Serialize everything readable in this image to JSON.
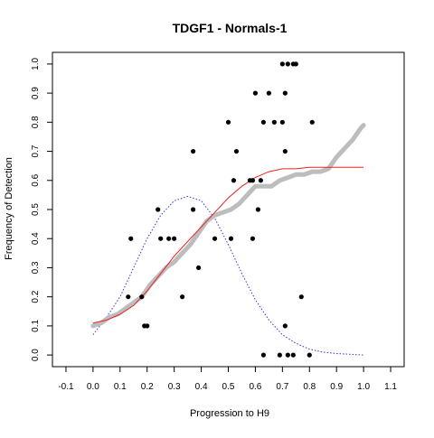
{
  "chart_data": {
    "type": "scatter",
    "title": "TDGF1 - Normals-1",
    "xlabel": "Progression to H9",
    "ylabel": "Frequency of Detection",
    "xlim": [
      -0.15,
      1.15
    ],
    "ylim": [
      -0.04,
      1.04
    ],
    "xticks": [
      -0.1,
      0.0,
      0.1,
      0.2,
      0.3,
      0.4,
      0.5,
      0.6,
      0.7,
      0.8,
      0.9,
      1.0,
      1.1
    ],
    "xtick_labels": [
      "-0.1",
      "0.0",
      "0.1",
      "0.2",
      "0.3",
      "0.4",
      "0.5",
      "0.6",
      "0.7",
      "0.8",
      "0.9",
      "1.0",
      "1.1"
    ],
    "yticks": [
      0.0,
      0.1,
      0.2,
      0.3,
      0.4,
      0.5,
      0.6,
      0.7,
      0.8,
      0.9,
      1.0
    ],
    "ytick_labels": [
      "0.0",
      "0.1",
      "0.2",
      "0.3",
      "0.4",
      "0.5",
      "0.6",
      "0.7",
      "0.8",
      "0.9",
      "1.0"
    ],
    "grid": false,
    "series": [
      {
        "kind": "points",
        "color": "#000000",
        "points": [
          [
            0.14,
            0.4
          ],
          [
            0.13,
            0.2
          ],
          [
            0.18,
            0.2
          ],
          [
            0.19,
            0.1
          ],
          [
            0.2,
            0.1
          ],
          [
            0.24,
            0.5
          ],
          [
            0.25,
            0.4
          ],
          [
            0.28,
            0.4
          ],
          [
            0.3,
            0.4
          ],
          [
            0.33,
            0.2
          ],
          [
            0.37,
            0.7
          ],
          [
            0.37,
            0.5
          ],
          [
            0.39,
            0.3
          ],
          [
            0.45,
            0.4
          ],
          [
            0.5,
            0.8
          ],
          [
            0.51,
            0.4
          ],
          [
            0.52,
            0.6
          ],
          [
            0.53,
            0.7
          ],
          [
            0.58,
            0.6
          ],
          [
            0.59,
            0.6
          ],
          [
            0.59,
            0.4
          ],
          [
            0.6,
            0.9
          ],
          [
            0.61,
            0.5
          ],
          [
            0.62,
            0.6
          ],
          [
            0.63,
            0.8
          ],
          [
            0.63,
            0.0
          ],
          [
            0.65,
            0.9
          ],
          [
            0.67,
            0.8
          ],
          [
            0.69,
            0.0
          ],
          [
            0.7,
            1.0
          ],
          [
            0.7,
            0.8
          ],
          [
            0.71,
            0.9
          ],
          [
            0.71,
            0.7
          ],
          [
            0.71,
            0.1
          ],
          [
            0.72,
            1.0
          ],
          [
            0.72,
            0.0
          ],
          [
            0.74,
            1.0
          ],
          [
            0.74,
            0.0
          ],
          [
            0.75,
            1.0
          ],
          [
            0.77,
            0.2
          ],
          [
            0.8,
            0.0
          ],
          [
            0.81,
            0.8
          ]
        ]
      },
      {
        "kind": "trend",
        "color": "#bdbdbd",
        "points": [
          [
            0.0,
            0.1
          ],
          [
            0.03,
            0.11
          ],
          [
            0.06,
            0.13
          ],
          [
            0.09,
            0.14
          ],
          [
            0.12,
            0.16
          ],
          [
            0.15,
            0.18
          ],
          [
            0.18,
            0.2
          ],
          [
            0.21,
            0.24
          ],
          [
            0.24,
            0.27
          ],
          [
            0.27,
            0.3
          ],
          [
            0.3,
            0.32
          ],
          [
            0.33,
            0.35
          ],
          [
            0.36,
            0.38
          ],
          [
            0.39,
            0.42
          ],
          [
            0.42,
            0.46
          ],
          [
            0.45,
            0.48
          ],
          [
            0.48,
            0.49
          ],
          [
            0.51,
            0.5
          ],
          [
            0.54,
            0.52
          ],
          [
            0.57,
            0.55
          ],
          [
            0.6,
            0.58
          ],
          [
            0.63,
            0.58
          ],
          [
            0.66,
            0.58
          ],
          [
            0.69,
            0.6
          ],
          [
            0.72,
            0.61
          ],
          [
            0.75,
            0.62
          ],
          [
            0.78,
            0.62
          ],
          [
            0.81,
            0.63
          ],
          [
            0.84,
            0.63
          ],
          [
            0.87,
            0.64
          ],
          [
            0.9,
            0.68
          ],
          [
            0.93,
            0.71
          ],
          [
            0.96,
            0.74
          ],
          [
            0.99,
            0.78
          ],
          [
            1.0,
            0.79
          ]
        ]
      },
      {
        "kind": "fit",
        "color": "#ee2222",
        "points": [
          [
            0.0,
            0.11
          ],
          [
            0.05,
            0.12
          ],
          [
            0.1,
            0.14
          ],
          [
            0.15,
            0.17
          ],
          [
            0.2,
            0.22
          ],
          [
            0.25,
            0.28
          ],
          [
            0.3,
            0.34
          ],
          [
            0.35,
            0.39
          ],
          [
            0.4,
            0.44
          ],
          [
            0.45,
            0.49
          ],
          [
            0.5,
            0.54
          ],
          [
            0.55,
            0.58
          ],
          [
            0.6,
            0.61
          ],
          [
            0.65,
            0.63
          ],
          [
            0.7,
            0.64
          ],
          [
            0.75,
            0.64
          ],
          [
            0.8,
            0.645
          ],
          [
            0.9,
            0.645
          ],
          [
            1.0,
            0.645
          ]
        ]
      },
      {
        "kind": "density",
        "color": "#3333dd",
        "points": [
          [
            0.0,
            0.07
          ],
          [
            0.05,
            0.13
          ],
          [
            0.1,
            0.2
          ],
          [
            0.15,
            0.3
          ],
          [
            0.2,
            0.4
          ],
          [
            0.25,
            0.48
          ],
          [
            0.3,
            0.53
          ],
          [
            0.35,
            0.545
          ],
          [
            0.4,
            0.53
          ],
          [
            0.45,
            0.47
          ],
          [
            0.5,
            0.38
          ],
          [
            0.55,
            0.28
          ],
          [
            0.6,
            0.19
          ],
          [
            0.65,
            0.12
          ],
          [
            0.7,
            0.07
          ],
          [
            0.75,
            0.04
          ],
          [
            0.8,
            0.02
          ],
          [
            0.85,
            0.01
          ],
          [
            0.9,
            0.005
          ],
          [
            1.0,
            0.0
          ]
        ]
      }
    ]
  }
}
